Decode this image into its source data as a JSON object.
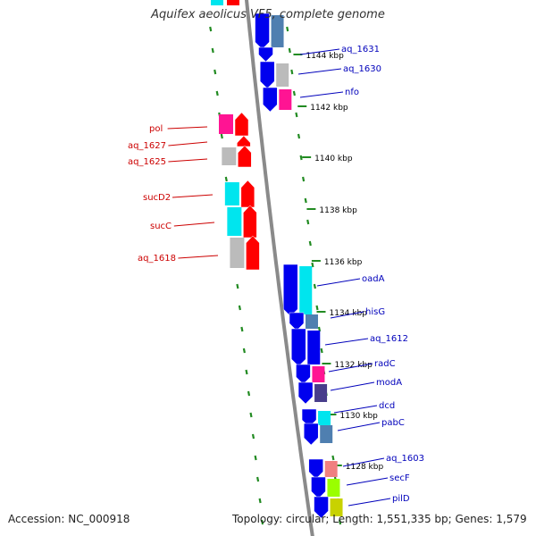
{
  "title": "Aquifex aeolicus VF5, complete genome",
  "footer": {
    "accession": "Accession: NC_000918",
    "meta": "Topology: circular; Length: 1,551,335 bp; Genes: 1,579"
  },
  "colors": {
    "backbone": "#8a8a8a",
    "tick_dots": "#228b22",
    "forward_label": "#cc0000",
    "reverse_label": "#0000bb",
    "cds_forward": "#ff0000",
    "cds_reverse": "#0000ee",
    "cog_cyan": "#00e5ee",
    "cog_gray": "#bbbbbb",
    "cog_magenta": "#ff1493",
    "cog_steel": "#4f7fb0",
    "cog_slate": "#483d8b",
    "cog_pink": "#f08080",
    "cog_lime": "#9aff00"
  },
  "scale_labels": [
    "1144 kbp",
    "1142 kbp",
    "1140 kbp",
    "1138 kbp",
    "1136 kbp",
    "1134 kbp",
    "1132 kbp",
    "1130 kbp",
    "1128 kbp"
  ],
  "forward_genes": [
    "pol",
    "aq_1627",
    "aq_1625",
    "sucD2",
    "sucC",
    "aq_1618"
  ],
  "reverse_genes": [
    "aq_1631",
    "aq_1630",
    "nfo",
    "oadA",
    "hisG",
    "aq_1612",
    "radC",
    "modA",
    "dcd",
    "pabC",
    "aq_1603",
    "secF",
    "pilD"
  ]
}
